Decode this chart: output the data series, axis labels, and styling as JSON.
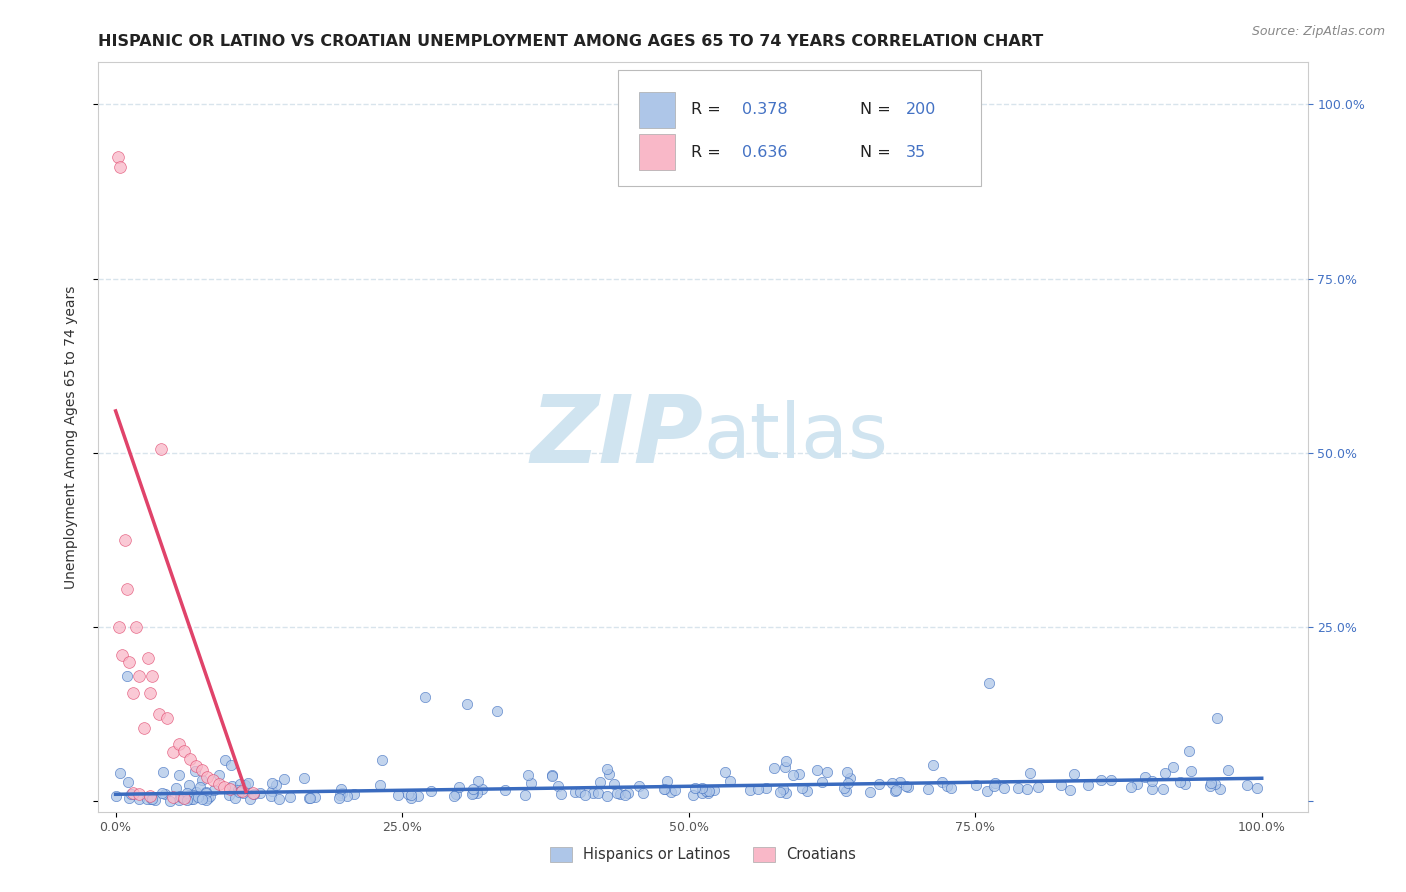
{
  "title": "HISPANIC OR LATINO VS CROATIAN UNEMPLOYMENT AMONG AGES 65 TO 74 YEARS CORRELATION CHART",
  "source": "Source: ZipAtlas.com",
  "ylabel": "Unemployment Among Ages 65 to 74 years",
  "x_tick_labels": [
    "0.0%",
    "25.0%",
    "50.0%",
    "75.0%",
    "100.0%"
  ],
  "x_tick_vals": [
    0,
    0.25,
    0.5,
    0.75,
    1.0
  ],
  "y_tick_labels_right": [
    "",
    "25.0%",
    "50.0%",
    "75.0%",
    "100.0%"
  ],
  "y_tick_vals": [
    0,
    0.25,
    0.5,
    0.75,
    1.0
  ],
  "xlim": [
    -0.015,
    1.04
  ],
  "ylim": [
    -0.015,
    1.06
  ],
  "blue_R": 0.378,
  "blue_N": 200,
  "pink_R": 0.636,
  "pink_N": 35,
  "legend_labels": [
    "Hispanics or Latinos",
    "Croatians"
  ],
  "blue_color": "#aec6e8",
  "pink_color": "#f9b8c8",
  "blue_line_color": "#3a6bbf",
  "pink_line_color": "#e0436a",
  "scatter_alpha": 0.75,
  "marker_size": 55,
  "watermark_zip": "ZIP",
  "watermark_atlas": "atlas",
  "watermark_color": "#d0e4f0",
  "background_color": "#ffffff",
  "grid_color": "#d8e4ec",
  "title_fontsize": 11.5,
  "label_fontsize": 10,
  "tick_fontsize": 9,
  "source_fontsize": 9
}
